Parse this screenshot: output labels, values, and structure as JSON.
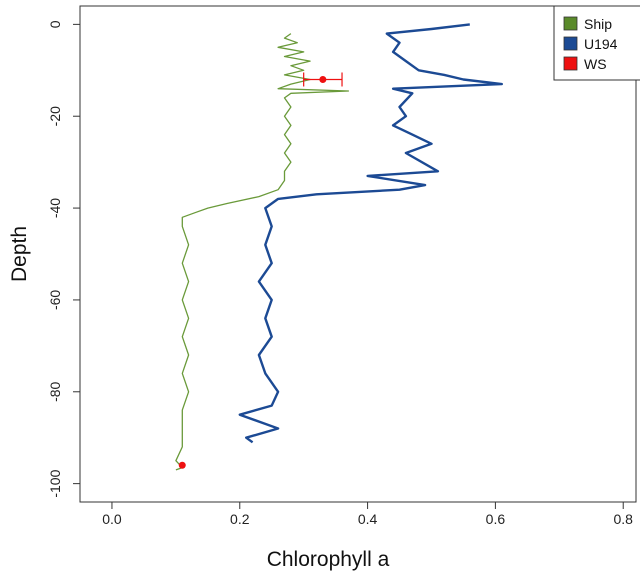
{
  "chart_data": {
    "type": "line",
    "title": "",
    "xlabel": "Chlorophyll a",
    "ylabel": "Depth",
    "xlim": [
      -0.05,
      0.82
    ],
    "ylim": [
      -104,
      4
    ],
    "x_ticks": [
      "0.0",
      "0.2",
      "0.4",
      "0.6",
      "0.8"
    ],
    "x_tick_values": [
      0.0,
      0.2,
      0.4,
      0.6,
      0.8
    ],
    "y_ticks": [
      "0",
      "-20",
      "-40",
      "-60",
      "-80",
      "-100"
    ],
    "y_tick_values": [
      0,
      -20,
      -40,
      -60,
      -80,
      -100
    ],
    "grid": false,
    "legend_position": "top-right",
    "legend": [
      {
        "label": "Ship",
        "color": "#5a8a2a"
      },
      {
        "label": "U194",
        "color": "#1c4a94"
      },
      {
        "label": "WS",
        "color": "#ee1111"
      }
    ],
    "series": [
      {
        "name": "Ship",
        "color": "#6a9a3a",
        "points": [
          [
            0.28,
            -2
          ],
          [
            0.27,
            -3
          ],
          [
            0.29,
            -4
          ],
          [
            0.26,
            -5
          ],
          [
            0.3,
            -6
          ],
          [
            0.27,
            -7
          ],
          [
            0.31,
            -8
          ],
          [
            0.28,
            -9
          ],
          [
            0.3,
            -10
          ],
          [
            0.27,
            -11
          ],
          [
            0.31,
            -12
          ],
          [
            0.28,
            -13
          ],
          [
            0.26,
            -14
          ],
          [
            0.37,
            -14.5
          ],
          [
            0.28,
            -15
          ],
          [
            0.27,
            -16
          ],
          [
            0.28,
            -18
          ],
          [
            0.27,
            -20
          ],
          [
            0.28,
            -22
          ],
          [
            0.27,
            -24
          ],
          [
            0.28,
            -26
          ],
          [
            0.27,
            -28
          ],
          [
            0.28,
            -30
          ],
          [
            0.27,
            -32
          ],
          [
            0.27,
            -34
          ],
          [
            0.26,
            -36
          ],
          [
            0.23,
            -37.5
          ],
          [
            0.18,
            -39
          ],
          [
            0.15,
            -40
          ],
          [
            0.13,
            -41
          ],
          [
            0.11,
            -42
          ],
          [
            0.11,
            -44
          ],
          [
            0.12,
            -48
          ],
          [
            0.11,
            -52
          ],
          [
            0.12,
            -56
          ],
          [
            0.11,
            -60
          ],
          [
            0.12,
            -64
          ],
          [
            0.11,
            -68
          ],
          [
            0.12,
            -72
          ],
          [
            0.11,
            -76
          ],
          [
            0.12,
            -80
          ],
          [
            0.11,
            -84
          ],
          [
            0.11,
            -88
          ],
          [
            0.11,
            -92
          ],
          [
            0.1,
            -95
          ],
          [
            0.11,
            -96.5
          ],
          [
            0.1,
            -97
          ]
        ]
      },
      {
        "name": "U194",
        "color": "#1c4a94",
        "points": [
          [
            0.56,
            0
          ],
          [
            0.5,
            -1
          ],
          [
            0.43,
            -2
          ],
          [
            0.45,
            -4
          ],
          [
            0.44,
            -6
          ],
          [
            0.46,
            -8
          ],
          [
            0.48,
            -10
          ],
          [
            0.52,
            -11
          ],
          [
            0.55,
            -12
          ],
          [
            0.61,
            -13
          ],
          [
            0.44,
            -14
          ],
          [
            0.47,
            -15
          ],
          [
            0.45,
            -18
          ],
          [
            0.46,
            -20
          ],
          [
            0.44,
            -22
          ],
          [
            0.47,
            -24
          ],
          [
            0.5,
            -26
          ],
          [
            0.46,
            -28
          ],
          [
            0.51,
            -32
          ],
          [
            0.4,
            -33
          ],
          [
            0.49,
            -35
          ],
          [
            0.45,
            -36
          ],
          [
            0.32,
            -37
          ],
          [
            0.26,
            -38
          ],
          [
            0.24,
            -40
          ],
          [
            0.25,
            -44
          ],
          [
            0.24,
            -48
          ],
          [
            0.25,
            -52
          ],
          [
            0.23,
            -56
          ],
          [
            0.25,
            -60
          ],
          [
            0.24,
            -64
          ],
          [
            0.25,
            -68
          ],
          [
            0.23,
            -72
          ],
          [
            0.24,
            -76
          ],
          [
            0.26,
            -80
          ],
          [
            0.25,
            -83
          ],
          [
            0.2,
            -85
          ],
          [
            0.24,
            -87
          ],
          [
            0.26,
            -88
          ],
          [
            0.21,
            -90
          ],
          [
            0.22,
            -91
          ]
        ]
      }
    ],
    "ws_points": [
      {
        "x": 0.33,
        "y": -12,
        "xerr": [
          0.3,
          0.36
        ]
      },
      {
        "x": 0.11,
        "y": -96
      }
    ]
  }
}
